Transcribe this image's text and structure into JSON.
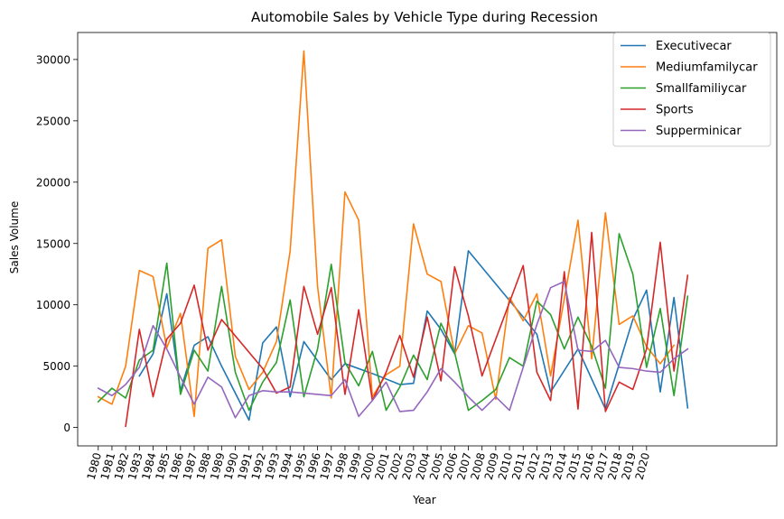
{
  "chart_data": {
    "type": "line",
    "title": "Automobile Sales by Vehicle Type during Recession",
    "xlabel": "Year",
    "ylabel": "Sales Volume",
    "xlim": [
      1978.5,
      2029.5
    ],
    "ylim": [
      -1500,
      32200
    ],
    "x_ticks": [
      "1980",
      "1981",
      "1982",
      "1983",
      "1984",
      "1985",
      "1986",
      "1987",
      "1988",
      "1989",
      "1990",
      "1991",
      "1992",
      "1993",
      "1994",
      "1995",
      "1996",
      "1997",
      "1998",
      "1999",
      "2000",
      "2001",
      "2002",
      "2003",
      "2004",
      "2005",
      "2006",
      "2007",
      "2008",
      "2009",
      "2010",
      "2011",
      "2012",
      "2013",
      "2014",
      "2015",
      "2016",
      "2017",
      "2018",
      "2019",
      "2020"
    ],
    "y_ticks": [
      0,
      5000,
      10000,
      15000,
      20000,
      25000,
      30000
    ],
    "y_tick_labels": [
      "0",
      "5000",
      "10000",
      "15000",
      "20000",
      "25000",
      "30000"
    ],
    "grid": false,
    "legend_position": "top-right",
    "series": [
      {
        "name": "Executivecar",
        "color": "#1f77b4",
        "points": [
          [
            1983,
            4200
          ],
          [
            1984,
            6000
          ],
          [
            1985,
            10900
          ],
          [
            1986,
            3000
          ],
          [
            1987,
            6700
          ],
          [
            1988,
            7400
          ],
          [
            1989,
            5000
          ],
          [
            1991,
            600
          ],
          [
            1992,
            6900
          ],
          [
            1993,
            8200
          ],
          [
            1994,
            2500
          ],
          [
            1995,
            7000
          ],
          [
            1997,
            3900
          ],
          [
            1998,
            5200
          ],
          [
            2000,
            4400
          ],
          [
            2002,
            3500
          ],
          [
            2003,
            3600
          ],
          [
            2004,
            9500
          ],
          [
            2005,
            8000
          ],
          [
            2006,
            6000
          ],
          [
            2007,
            14400
          ],
          [
            2011,
            9000
          ],
          [
            2012,
            7600
          ],
          [
            2013,
            2900
          ],
          [
            2015,
            6400
          ],
          [
            2017,
            1500
          ],
          [
            2019,
            8800
          ],
          [
            2020,
            11200
          ],
          [
            2021,
            2900
          ],
          [
            2022,
            10600
          ],
          [
            2023,
            1600
          ]
        ]
      },
      {
        "name": "Mediumfamilycar",
        "color": "#ff7f0e",
        "points": [
          [
            1980,
            2500
          ],
          [
            1981,
            1900
          ],
          [
            1982,
            5000
          ],
          [
            1983,
            12800
          ],
          [
            1984,
            12300
          ],
          [
            1985,
            6500
          ],
          [
            1986,
            9300
          ],
          [
            1987,
            900
          ],
          [
            1988,
            14600
          ],
          [
            1989,
            15300
          ],
          [
            1990,
            5800
          ],
          [
            1991,
            3100
          ],
          [
            1992,
            4500
          ],
          [
            1993,
            7000
          ],
          [
            1994,
            14400
          ],
          [
            1995,
            30700
          ],
          [
            1996,
            11500
          ],
          [
            1997,
            2400
          ],
          [
            1998,
            19200
          ],
          [
            1999,
            16900
          ],
          [
            2000,
            2500
          ],
          [
            2001,
            4300
          ],
          [
            2002,
            5000
          ],
          [
            2003,
            16600
          ],
          [
            2004,
            12500
          ],
          [
            2005,
            11900
          ],
          [
            2006,
            6000
          ],
          [
            2007,
            8300
          ],
          [
            2008,
            7700
          ],
          [
            2009,
            2300
          ],
          [
            2010,
            10600
          ],
          [
            2011,
            8700
          ],
          [
            2012,
            10900
          ],
          [
            2013,
            4200
          ],
          [
            2014,
            10500
          ],
          [
            2015,
            16900
          ],
          [
            2016,
            5600
          ],
          [
            2017,
            17500
          ],
          [
            2018,
            8400
          ],
          [
            2019,
            9100
          ],
          [
            2020,
            6600
          ],
          [
            2021,
            5200
          ],
          [
            2022,
            6700
          ]
        ]
      },
      {
        "name": "Smallfamiliycar",
        "color": "#2ca02c",
        "points": [
          [
            1980,
            2100
          ],
          [
            1981,
            3200
          ],
          [
            1982,
            2400
          ],
          [
            1983,
            5500
          ],
          [
            1984,
            6300
          ],
          [
            1985,
            13400
          ],
          [
            1986,
            2700
          ],
          [
            1987,
            6300
          ],
          [
            1988,
            4600
          ],
          [
            1989,
            11500
          ],
          [
            1990,
            4500
          ],
          [
            1991,
            1400
          ],
          [
            1992,
            3700
          ],
          [
            1993,
            5300
          ],
          [
            1994,
            10400
          ],
          [
            1995,
            2500
          ],
          [
            1996,
            6400
          ],
          [
            1997,
            13300
          ],
          [
            1998,
            5300
          ],
          [
            1999,
            3400
          ],
          [
            2000,
            6200
          ],
          [
            2001,
            1400
          ],
          [
            2002,
            3300
          ],
          [
            2003,
            5900
          ],
          [
            2004,
            3900
          ],
          [
            2005,
            8500
          ],
          [
            2006,
            6100
          ],
          [
            2007,
            1400
          ],
          [
            2008,
            2200
          ],
          [
            2009,
            3100
          ],
          [
            2010,
            5700
          ],
          [
            2011,
            5000
          ],
          [
            2012,
            10300
          ],
          [
            2013,
            9200
          ],
          [
            2014,
            6400
          ],
          [
            2015,
            9000
          ],
          [
            2016,
            6600
          ],
          [
            2017,
            3200
          ],
          [
            2018,
            15800
          ],
          [
            2019,
            12500
          ],
          [
            2020,
            4900
          ],
          [
            2021,
            9700
          ],
          [
            2022,
            2600
          ],
          [
            2023,
            10700
          ]
        ]
      },
      {
        "name": "Sports",
        "color": "#d62728",
        "points": [
          [
            1982,
            100
          ],
          [
            1983,
            8000
          ],
          [
            1984,
            2500
          ],
          [
            1985,
            7200
          ],
          [
            1986,
            8500
          ],
          [
            1987,
            11600
          ],
          [
            1988,
            6300
          ],
          [
            1989,
            8800
          ],
          [
            1992,
            4800
          ],
          [
            1993,
            2800
          ],
          [
            1994,
            3300
          ],
          [
            1995,
            11500
          ],
          [
            1996,
            7600
          ],
          [
            1997,
            11400
          ],
          [
            1998,
            2700
          ],
          [
            1999,
            9600
          ],
          [
            2000,
            2200
          ],
          [
            2001,
            4500
          ],
          [
            2002,
            7500
          ],
          [
            2003,
            4100
          ],
          [
            2004,
            9000
          ],
          [
            2005,
            3800
          ],
          [
            2006,
            13100
          ],
          [
            2007,
            9100
          ],
          [
            2008,
            4200
          ],
          [
            2011,
            13200
          ],
          [
            2012,
            4500
          ],
          [
            2013,
            2200
          ],
          [
            2014,
            12700
          ],
          [
            2015,
            1500
          ],
          [
            2016,
            15900
          ],
          [
            2017,
            1300
          ],
          [
            2018,
            3700
          ],
          [
            2019,
            3100
          ],
          [
            2020,
            6400
          ],
          [
            2021,
            15100
          ],
          [
            2022,
            4600
          ],
          [
            2023,
            12400
          ]
        ]
      },
      {
        "name": "Supperminicar",
        "color": "#9467bd",
        "points": [
          [
            1980,
            3200
          ],
          [
            1981,
            2600
          ],
          [
            1982,
            3500
          ],
          [
            1983,
            4900
          ],
          [
            1984,
            8300
          ],
          [
            1985,
            6400
          ],
          [
            1986,
            4100
          ],
          [
            1987,
            1900
          ],
          [
            1988,
            4100
          ],
          [
            1989,
            3300
          ],
          [
            1990,
            800
          ],
          [
            1991,
            2600
          ],
          [
            1992,
            3000
          ],
          [
            1993,
            2900
          ],
          [
            1994,
            2900
          ],
          [
            1995,
            2800
          ],
          [
            1996,
            2700
          ],
          [
            1997,
            2600
          ],
          [
            1998,
            3900
          ],
          [
            1999,
            900
          ],
          [
            2000,
            2200
          ],
          [
            2001,
            3700
          ],
          [
            2002,
            1300
          ],
          [
            2003,
            1400
          ],
          [
            2004,
            2900
          ],
          [
            2005,
            4800
          ],
          [
            2006,
            3700
          ],
          [
            2007,
            2500
          ],
          [
            2008,
            1400
          ],
          [
            2009,
            2500
          ],
          [
            2010,
            1400
          ],
          [
            2011,
            4900
          ],
          [
            2012,
            8400
          ],
          [
            2013,
            11400
          ],
          [
            2014,
            11900
          ],
          [
            2015,
            6300
          ],
          [
            2016,
            6200
          ],
          [
            2017,
            7100
          ],
          [
            2018,
            4900
          ],
          [
            2019,
            4800
          ],
          [
            2020,
            4600
          ],
          [
            2021,
            4500
          ],
          [
            2022,
            5600
          ],
          [
            2023,
            6400
          ]
        ]
      }
    ]
  }
}
